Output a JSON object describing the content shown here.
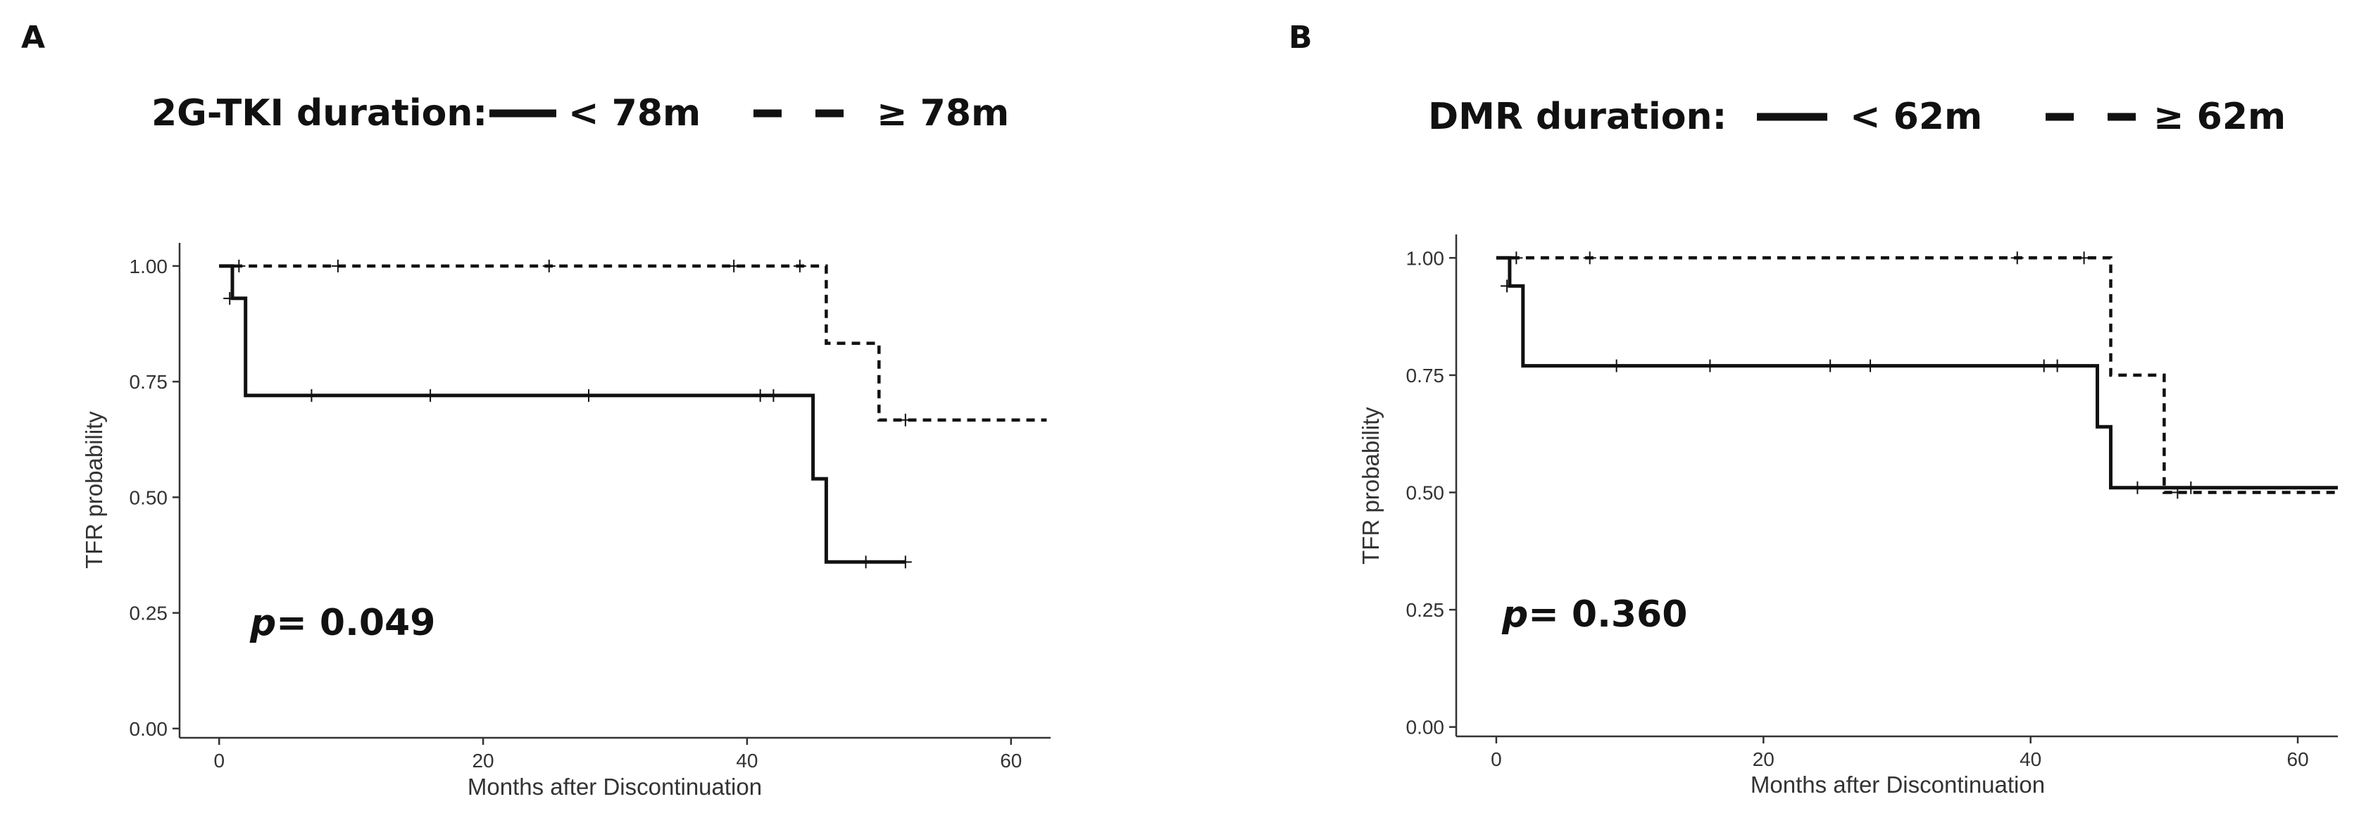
{
  "chart_data": [
    {
      "type": "line",
      "subtype": "kaplan-meier",
      "panel_label": "A",
      "legend_title": "2G-TKI duration:",
      "xlabel": "Months after Discontinuation",
      "ylabel": "TFR probability",
      "xlim": [
        -3,
        63
      ],
      "ylim": [
        -0.02,
        1.05
      ],
      "x_ticks": [
        0,
        20,
        40,
        60
      ],
      "x_tick_labels": [
        "0",
        "20",
        "40",
        "60"
      ],
      "y_ticks": [
        0,
        0.25,
        0.5,
        0.75,
        1.0
      ],
      "y_tick_labels": [
        "0.00",
        "0.25",
        "0.50",
        "0.75",
        "1.00"
      ],
      "grid": false,
      "legend_position": "top",
      "annotation": {
        "p_symbol": "p",
        "p_text": "= 0.049",
        "x": 2,
        "y": 0.2
      },
      "series": [
        {
          "name": "< 78m",
          "style": "solid",
          "x": [
            0,
            1,
            1,
            2,
            2,
            45,
            45,
            46,
            46,
            52
          ],
          "y": [
            1.0,
            1.0,
            0.93,
            0.93,
            0.72,
            0.72,
            0.54,
            0.54,
            0.36,
            0.36
          ],
          "censor_x": [
            0.8,
            7,
            16,
            28,
            41,
            42,
            49,
            52
          ],
          "censor_y": [
            0.93,
            0.72,
            0.72,
            0.72,
            0.72,
            0.72,
            0.36,
            0.36
          ]
        },
        {
          "name": "≥ 78m",
          "style": "dashed",
          "x": [
            0,
            46,
            46,
            50,
            50,
            62.7
          ],
          "y": [
            1.0,
            1.0,
            0.833,
            0.833,
            0.667,
            0.667
          ],
          "censor_x": [
            1.5,
            9,
            25,
            39,
            44,
            52
          ],
          "censor_y": [
            1.0,
            1.0,
            1.0,
            1.0,
            1.0,
            0.667
          ]
        }
      ]
    },
    {
      "type": "line",
      "subtype": "kaplan-meier",
      "panel_label": "B",
      "legend_title": "DMR duration:",
      "xlabel": "Months after Discontinuation",
      "ylabel": "TFR probability",
      "xlim": [
        -3,
        63
      ],
      "ylim": [
        -0.02,
        1.05
      ],
      "x_ticks": [
        0,
        20,
        40,
        60
      ],
      "x_tick_labels": [
        "0",
        "20",
        "40",
        "60"
      ],
      "y_ticks": [
        0,
        0.25,
        0.5,
        0.75,
        1.0
      ],
      "y_tick_labels": [
        "0.00",
        "0.25",
        "0.50",
        "0.75",
        "1.00"
      ],
      "grid": false,
      "legend_position": "top",
      "annotation": {
        "p_symbol": "p",
        "p_text": "= 0.360",
        "x": 2,
        "y": 0.2
      },
      "series": [
        {
          "name": "< 62m",
          "style": "solid",
          "x": [
            0,
            1,
            1,
            2,
            2,
            45,
            45,
            46,
            46,
            63
          ],
          "y": [
            1.0,
            1.0,
            0.94,
            0.94,
            0.77,
            0.77,
            0.64,
            0.64,
            0.51,
            0.51
          ],
          "censor_x": [
            0.8,
            9,
            16,
            25,
            28,
            41,
            42,
            48,
            52
          ],
          "censor_y": [
            0.94,
            0.77,
            0.77,
            0.77,
            0.77,
            0.77,
            0.77,
            0.51,
            0.51
          ]
        },
        {
          "name": "≥ 62m",
          "style": "dashed",
          "x": [
            0,
            46,
            46,
            50,
            50,
            63
          ],
          "y": [
            1.0,
            1.0,
            0.75,
            0.75,
            0.5,
            0.5
          ],
          "censor_x": [
            1.5,
            7,
            39,
            44,
            51
          ],
          "censor_y": [
            1.0,
            1.0,
            1.0,
            1.0,
            0.5
          ]
        }
      ]
    }
  ]
}
